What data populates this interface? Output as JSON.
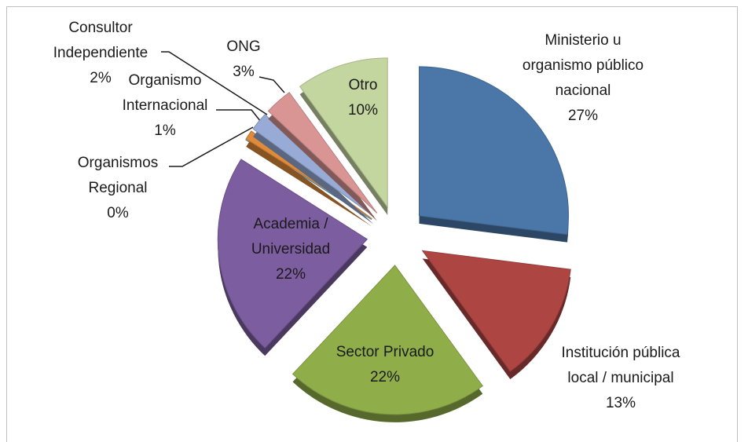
{
  "chart_data": {
    "type": "pie",
    "categories": [
      "Ministerio u organismo público nacional",
      "Institución pública local / municipal",
      "Sector Privado",
      "Academia / Universidad",
      "Organismos Regional",
      "Organismo Internacional",
      "Consultor Independiente",
      "ONG",
      "Otro"
    ],
    "values": [
      27,
      13,
      22,
      22,
      0,
      1,
      2,
      3,
      10
    ],
    "value_labels": [
      "27%",
      "13%",
      "22%",
      "22%",
      "0%",
      "1%",
      "2%",
      "3%",
      "10%"
    ],
    "colors": [
      "#4a76a8",
      "#ad4643",
      "#8fae4a",
      "#7c5d9f",
      "#2f8ba2",
      "#e08a3a",
      "#97abd6",
      "#d99594",
      "#c4d6a0"
    ]
  }
}
